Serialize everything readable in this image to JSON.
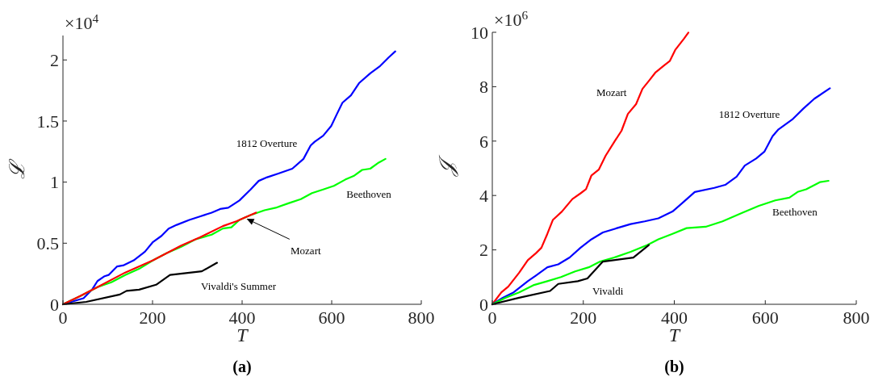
{
  "chart_data": [
    {
      "type": "line",
      "title": "(a)",
      "xlabel": "T",
      "ylabel": "ℒ",
      "annotations": [
        "×10$^{4}$"
      ],
      "xlim": [
        0,
        800
      ],
      "ylim": [
        0,
        2.2
      ],
      "xticks": [
        0,
        200,
        400,
        600,
        800
      ],
      "yticks": [
        0,
        0.5,
        1,
        1.5,
        2
      ],
      "grid": false,
      "legend": false,
      "marker": "none",
      "line_style": "solid",
      "series": [
        {
          "name": "1812 Overture",
          "color": "#0000ff",
          "x": [
            0,
            46,
            65,
            77,
            93,
            102,
            121,
            136,
            158,
            183,
            201,
            220,
            236,
            254,
            282,
            307,
            332,
            351,
            369,
            394,
            419,
            437,
            456,
            481,
            512,
            537,
            553,
            562,
            581,
            599,
            612,
            624,
            643,
            661,
            686,
            708,
            727,
            742
          ],
          "values": [
            0,
            0.05,
            0.12,
            0.19,
            0.23,
            0.24,
            0.31,
            0.32,
            0.36,
            0.43,
            0.51,
            0.56,
            0.62,
            0.65,
            0.69,
            0.72,
            0.75,
            0.78,
            0.79,
            0.85,
            0.94,
            1.01,
            1.04,
            1.07,
            1.11,
            1.19,
            1.3,
            1.33,
            1.38,
            1.46,
            1.56,
            1.65,
            1.71,
            1.81,
            1.89,
            1.95,
            2.02,
            2.07
          ]
        },
        {
          "name": "Beethoven",
          "color": "#00ff00",
          "x": [
            0,
            40,
            77,
            108,
            139,
            170,
            201,
            232,
            264,
            295,
            332,
            357,
            376,
            394,
            419,
            450,
            475,
            506,
            531,
            556,
            581,
            605,
            630,
            649,
            668,
            686,
            705,
            720
          ],
          "values": [
            0,
            0.07,
            0.14,
            0.18,
            0.24,
            0.29,
            0.36,
            0.42,
            0.47,
            0.53,
            0.57,
            0.62,
            0.63,
            0.69,
            0.73,
            0.77,
            0.79,
            0.83,
            0.86,
            0.91,
            0.94,
            0.97,
            1.02,
            1.05,
            1.1,
            1.11,
            1.16,
            1.19
          ]
        },
        {
          "name": "Mozart",
          "color": "#ff0000",
          "x": [
            0,
            34,
            77,
            139,
            201,
            264,
            307,
            357,
            388,
            406,
            431
          ],
          "values": [
            0,
            0.06,
            0.14,
            0.26,
            0.36,
            0.48,
            0.55,
            0.64,
            0.68,
            0.71,
            0.75
          ]
        },
        {
          "name": "Vivaldi's Summer",
          "color": "#000000",
          "x": [
            0,
            52,
            127,
            142,
            170,
            208,
            239,
            310,
            344
          ],
          "values": [
            0,
            0.02,
            0.08,
            0.11,
            0.12,
            0.16,
            0.24,
            0.27,
            0.34
          ]
        }
      ]
    },
    {
      "type": "line",
      "title": "(b)",
      "xlabel": "T",
      "ylabel": "𝒥",
      "annotations": [
        "×10$^{6}$"
      ],
      "xlim": [
        0,
        800
      ],
      "ylim": [
        0,
        10
      ],
      "xticks": [
        0,
        200,
        400,
        600,
        800
      ],
      "yticks": [
        0,
        2,
        4,
        6,
        8,
        10
      ],
      "grid": false,
      "legend": false,
      "marker": "none",
      "line_style": "solid",
      "series": [
        {
          "name": "Mozart",
          "color": "#ff0000",
          "x": [
            0,
            20,
            35,
            59,
            78,
            96,
            108,
            121,
            133,
            153,
            176,
            194,
            206,
            218,
            234,
            249,
            268,
            284,
            298,
            316,
            330,
            345,
            359,
            378,
            390,
            402,
            421,
            431
          ],
          "values": [
            0,
            0.44,
            0.65,
            1.16,
            1.62,
            1.88,
            2.08,
            2.59,
            3.1,
            3.41,
            3.87,
            4.08,
            4.23,
            4.74,
            4.95,
            5.46,
            5.97,
            6.38,
            7.0,
            7.36,
            7.92,
            8.23,
            8.53,
            8.79,
            8.94,
            9.35,
            9.76,
            9.99
          ]
        },
        {
          "name": "1812 Overture",
          "color": "#0000ff",
          "x": [
            0,
            23,
            47,
            78,
            96,
            121,
            145,
            170,
            194,
            218,
            243,
            274,
            304,
            335,
            365,
            396,
            421,
            445,
            488,
            512,
            537,
            555,
            580,
            598,
            616,
            629,
            659,
            684,
            708,
            742
          ],
          "values": [
            0,
            0.24,
            0.44,
            0.85,
            1.06,
            1.36,
            1.47,
            1.72,
            2.08,
            2.39,
            2.64,
            2.8,
            2.95,
            3.05,
            3.16,
            3.41,
            3.77,
            4.13,
            4.28,
            4.39,
            4.69,
            5.1,
            5.36,
            5.61,
            6.18,
            6.43,
            6.79,
            7.2,
            7.56,
            7.94
          ]
        },
        {
          "name": "Beethoven",
          "color": "#00ff00",
          "x": [
            0,
            29,
            59,
            90,
            121,
            151,
            182,
            212,
            237,
            268,
            304,
            341,
            365,
            396,
            427,
            469,
            506,
            549,
            586,
            622,
            653,
            671,
            690,
            720,
            739
          ],
          "values": [
            0,
            0.24,
            0.44,
            0.7,
            0.85,
            1.0,
            1.21,
            1.36,
            1.57,
            1.72,
            1.93,
            2.18,
            2.39,
            2.59,
            2.8,
            2.85,
            3.05,
            3.36,
            3.62,
            3.82,
            3.92,
            4.13,
            4.23,
            4.49,
            4.54
          ]
        },
        {
          "name": "Vivaldi",
          "color": "#000000",
          "x": [
            0,
            59,
            127,
            145,
            188,
            209,
            243,
            310,
            344
          ],
          "values": [
            0,
            0.24,
            0.49,
            0.75,
            0.85,
            0.95,
            1.57,
            1.72,
            2.18
          ]
        }
      ]
    }
  ]
}
